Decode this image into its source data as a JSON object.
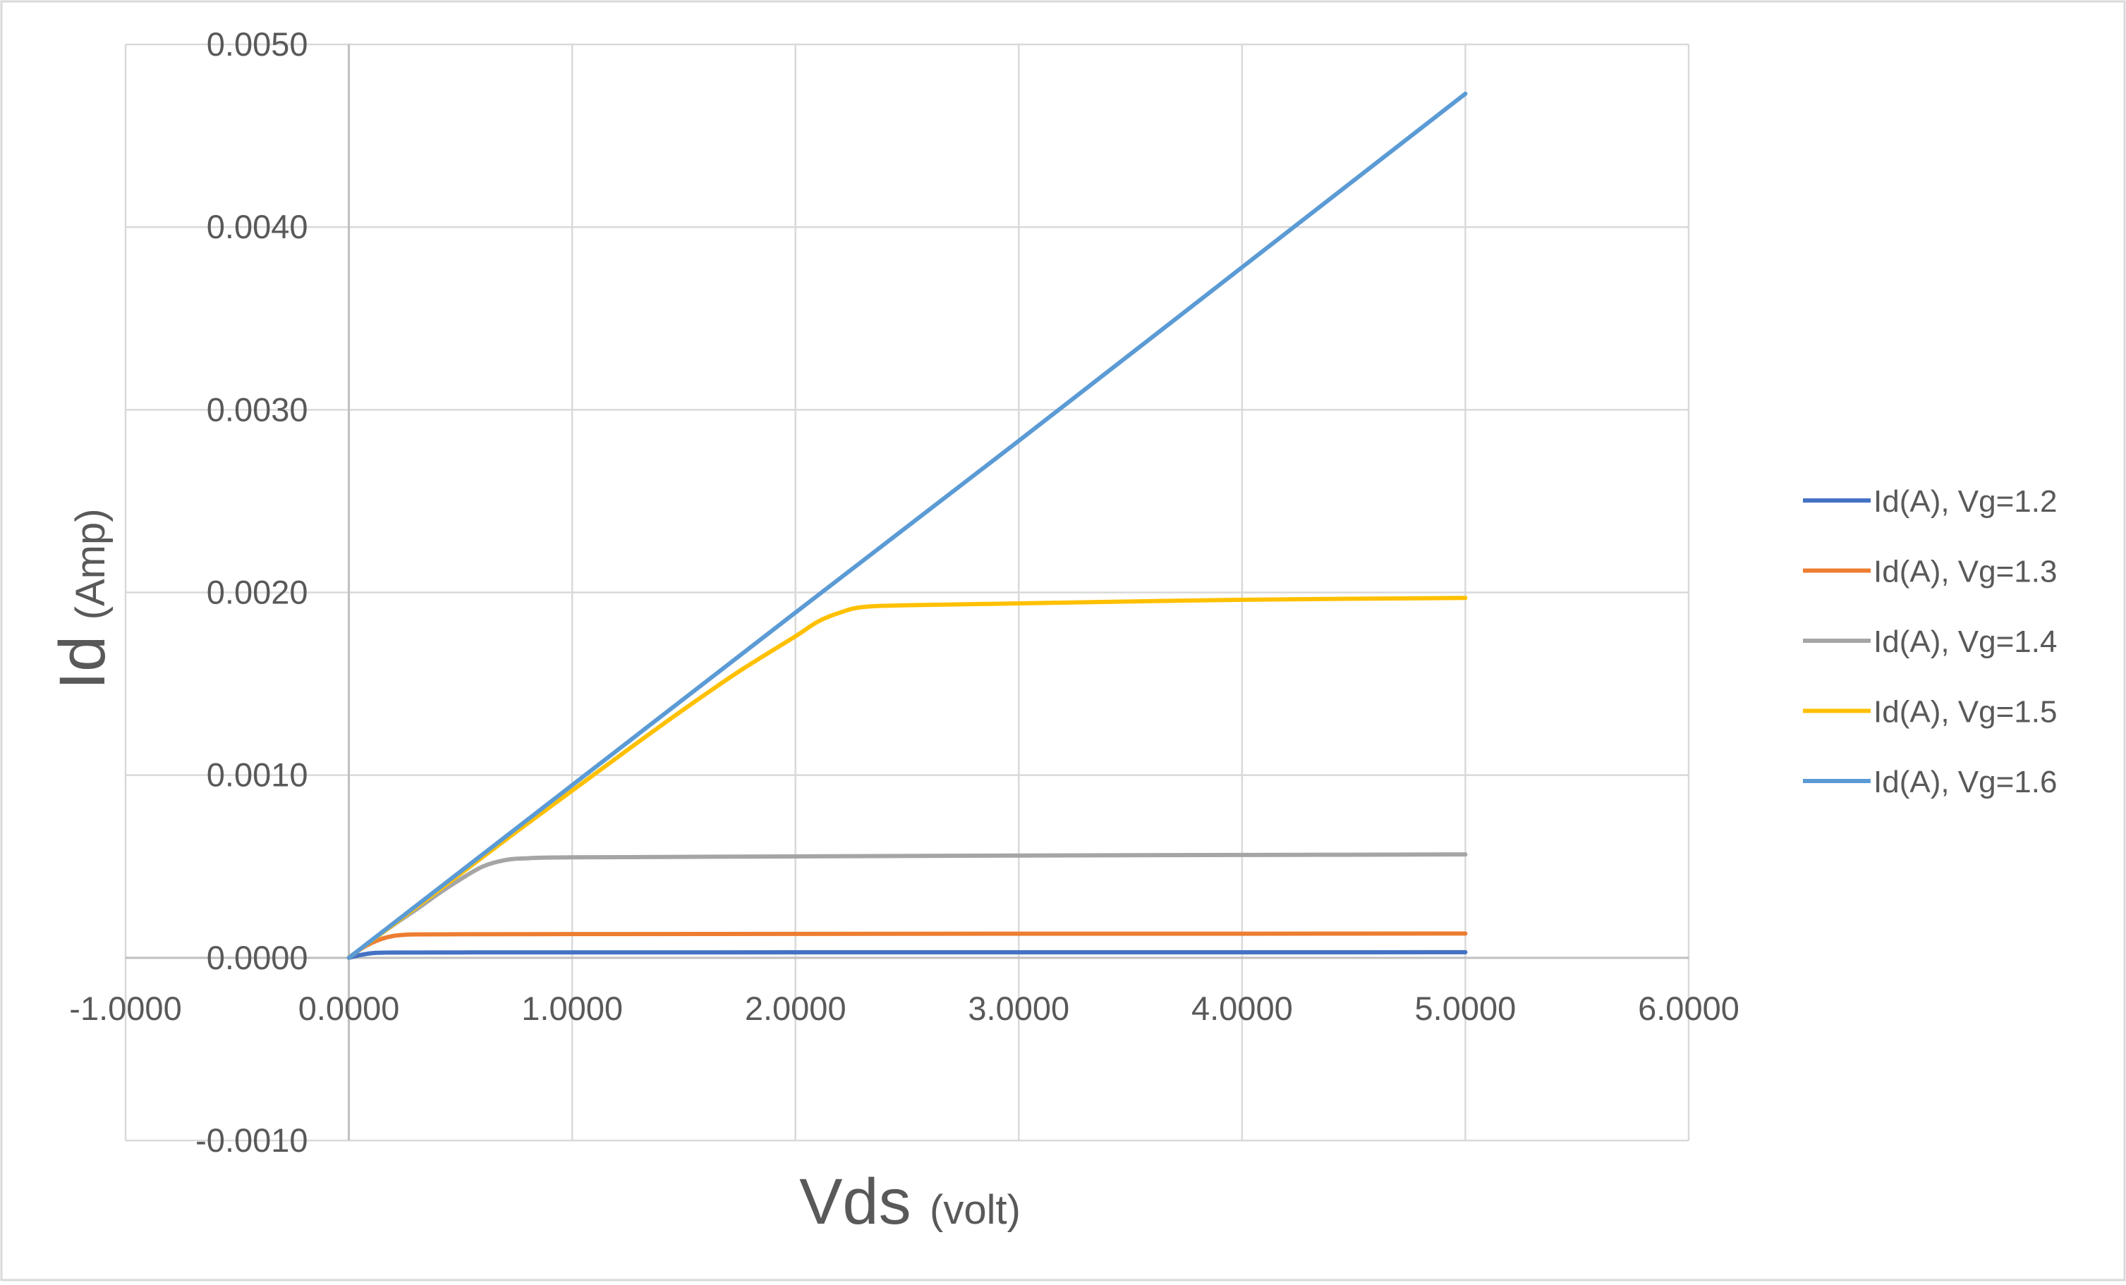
{
  "chart_data": {
    "type": "scatter",
    "style": "smooth-lines",
    "xlabel": {
      "main": "Vds",
      "unit": "(volt)"
    },
    "ylabel": {
      "main": "Id",
      "unit": "(Amp)"
    },
    "xlim": [
      -1.0,
      6.0
    ],
    "ylim": [
      -0.001,
      0.005
    ],
    "x_ticks": [
      {
        "value": -1.0,
        "label": "-1.0000"
      },
      {
        "value": 0.0,
        "label": "0.0000"
      },
      {
        "value": 1.0,
        "label": "1.0000"
      },
      {
        "value": 2.0,
        "label": "2.0000"
      },
      {
        "value": 3.0,
        "label": "3.0000"
      },
      {
        "value": 4.0,
        "label": "4.0000"
      },
      {
        "value": 5.0,
        "label": "5.0000"
      },
      {
        "value": 6.0,
        "label": "6.0000"
      }
    ],
    "y_ticks": [
      {
        "value": -0.001,
        "label": "-0.0010"
      },
      {
        "value": 0.0,
        "label": "0.0000"
      },
      {
        "value": 0.001,
        "label": "0.0010"
      },
      {
        "value": 0.002,
        "label": "0.0020"
      },
      {
        "value": 0.003,
        "label": "0.0030"
      },
      {
        "value": 0.004,
        "label": "0.0040"
      },
      {
        "value": 0.005,
        "label": "0.0050"
      }
    ],
    "grid": true,
    "legend_position": "right",
    "series": [
      {
        "name": "Id(A), Vg=1.2",
        "color": "#4472C4",
        "points": [
          [
            0,
            0
          ],
          [
            0.05,
            1.5e-05
          ],
          [
            0.1,
            2.5e-05
          ],
          [
            0.15,
            2.8e-05
          ],
          [
            0.2,
            2.9e-05
          ],
          [
            0.5,
            2.95e-05
          ],
          [
            1.0,
            2.98e-05
          ],
          [
            2.0,
            3e-05
          ],
          [
            3.0,
            3.02e-05
          ],
          [
            4.0,
            3.04e-05
          ],
          [
            5.0,
            3.05e-05
          ]
        ]
      },
      {
        "name": "Id(A), Vg=1.3",
        "color": "#ED7D31",
        "points": [
          [
            0,
            0
          ],
          [
            0.05,
            4.5e-05
          ],
          [
            0.1,
            8e-05
          ],
          [
            0.15,
            0.000105
          ],
          [
            0.2,
            0.00012
          ],
          [
            0.25,
            0.000126
          ],
          [
            0.3,
            0.000128
          ],
          [
            0.5,
            0.000129
          ],
          [
            1.0,
            0.00013
          ],
          [
            2.0,
            0.000131
          ],
          [
            3.0,
            0.000132
          ],
          [
            4.0,
            0.000132
          ],
          [
            5.0,
            0.000133
          ]
        ]
      },
      {
        "name": "Id(A), Vg=1.4",
        "color": "#A5A5A5",
        "points": [
          [
            0,
            0
          ],
          [
            0.1,
            9.3e-05
          ],
          [
            0.2,
            0.00018
          ],
          [
            0.3,
            0.000263
          ],
          [
            0.4,
            0.00035
          ],
          [
            0.5,
            0.00043
          ],
          [
            0.6,
            0.0005
          ],
          [
            0.7,
            0.000535
          ],
          [
            0.8,
            0.000545
          ],
          [
            1.0,
            0.00055
          ],
          [
            2.0,
            0.000555
          ],
          [
            3.0,
            0.00056
          ],
          [
            4.0,
            0.000563
          ],
          [
            5.0,
            0.000566
          ]
        ]
      },
      {
        "name": "Id(A), Vg=1.5",
        "color": "#FFC000",
        "points": [
          [
            0,
            0
          ],
          [
            0.25,
            0.00023
          ],
          [
            0.5,
            0.00046
          ],
          [
            0.75,
            0.00069
          ],
          [
            1.0,
            0.000915
          ],
          [
            1.25,
            0.00114
          ],
          [
            1.5,
            0.00136
          ],
          [
            1.75,
            0.00157
          ],
          [
            2.0,
            0.00176
          ],
          [
            2.1,
            0.00184
          ],
          [
            2.2,
            0.00189
          ],
          [
            2.3,
            0.00192
          ],
          [
            2.5,
            0.00193
          ],
          [
            3.0,
            0.00194
          ],
          [
            4.0,
            0.00196
          ],
          [
            5.0,
            0.00197
          ]
        ]
      },
      {
        "name": "Id(A), Vg=1.6",
        "color": "#5B9BD5",
        "points": [
          [
            0,
            0
          ],
          [
            1.0,
            0.000945
          ],
          [
            2.0,
            0.00189
          ],
          [
            3.0,
            0.00283
          ],
          [
            4.0,
            0.00378
          ],
          [
            5.0,
            0.00473
          ]
        ]
      }
    ]
  }
}
